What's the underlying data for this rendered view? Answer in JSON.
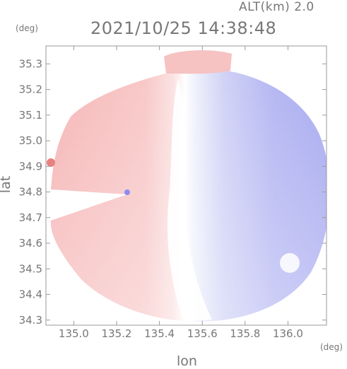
{
  "header": {
    "altitude": "ALT(km) 2.0",
    "timestamp": "2021/10/25 14:38:48"
  },
  "axes": {
    "x_label": "lon",
    "y_label": "lat",
    "x_unit": "(deg)",
    "y_unit": "(deg)",
    "x_ticks": [
      "135.0",
      "135.2",
      "135.4",
      "135.6",
      "135.8",
      "136.0"
    ],
    "y_ticks": [
      "35.3",
      "35.2",
      "35.1",
      "35.0",
      "34.9",
      "34.8",
      "34.7",
      "34.6",
      "34.5",
      "34.4",
      "34.3"
    ],
    "x_range": [
      134.87,
      136.18
    ],
    "y_range": [
      34.28,
      35.37
    ]
  },
  "colors": {
    "approaching": "#a6a6f2",
    "receding": "#f6b1b1",
    "zero": "#ffffff",
    "frame": "#9a9a9a"
  }
}
